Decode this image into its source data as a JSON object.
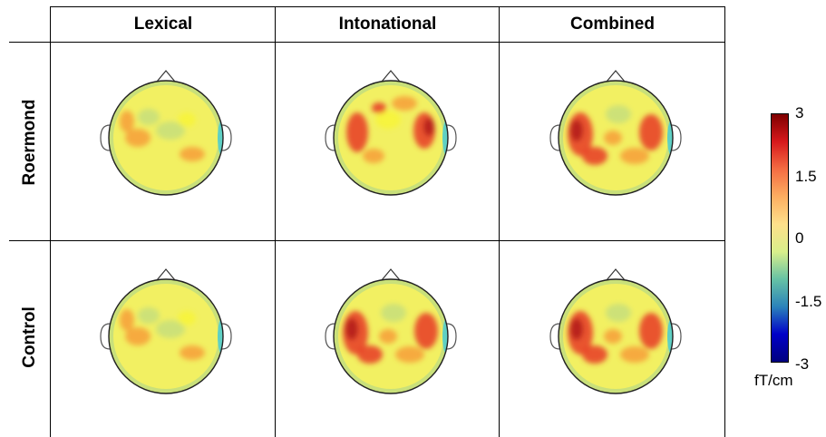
{
  "columns": [
    "Lexical",
    "Intonational",
    "Combined"
  ],
  "rows": [
    "Roermond",
    "Control"
  ],
  "colorbar": {
    "ticks": [
      "3",
      "1.5",
      "0",
      "-1.5",
      "-3"
    ],
    "unit": "fT/cm",
    "range": [
      -3,
      3
    ],
    "colormap": "jet"
  },
  "colors": {
    "base": "#f2f062",
    "yellow": "#f7f43a",
    "orange": "#f6a33a",
    "red": "#e8432a",
    "darkred": "#b41e1e",
    "green": "#c9e07a",
    "cyan": "#5fd0c4"
  },
  "maps": [
    {
      "row": "Roermond",
      "column": "Lexical",
      "intensity": "low"
    },
    {
      "row": "Roermond",
      "column": "Intonational",
      "intensity": "medium"
    },
    {
      "row": "Roermond",
      "column": "Combined",
      "intensity": "high"
    },
    {
      "row": "Control",
      "column": "Lexical",
      "intensity": "low"
    },
    {
      "row": "Control",
      "column": "Intonational",
      "intensity": "high"
    },
    {
      "row": "Control",
      "column": "Combined",
      "intensity": "high"
    }
  ]
}
